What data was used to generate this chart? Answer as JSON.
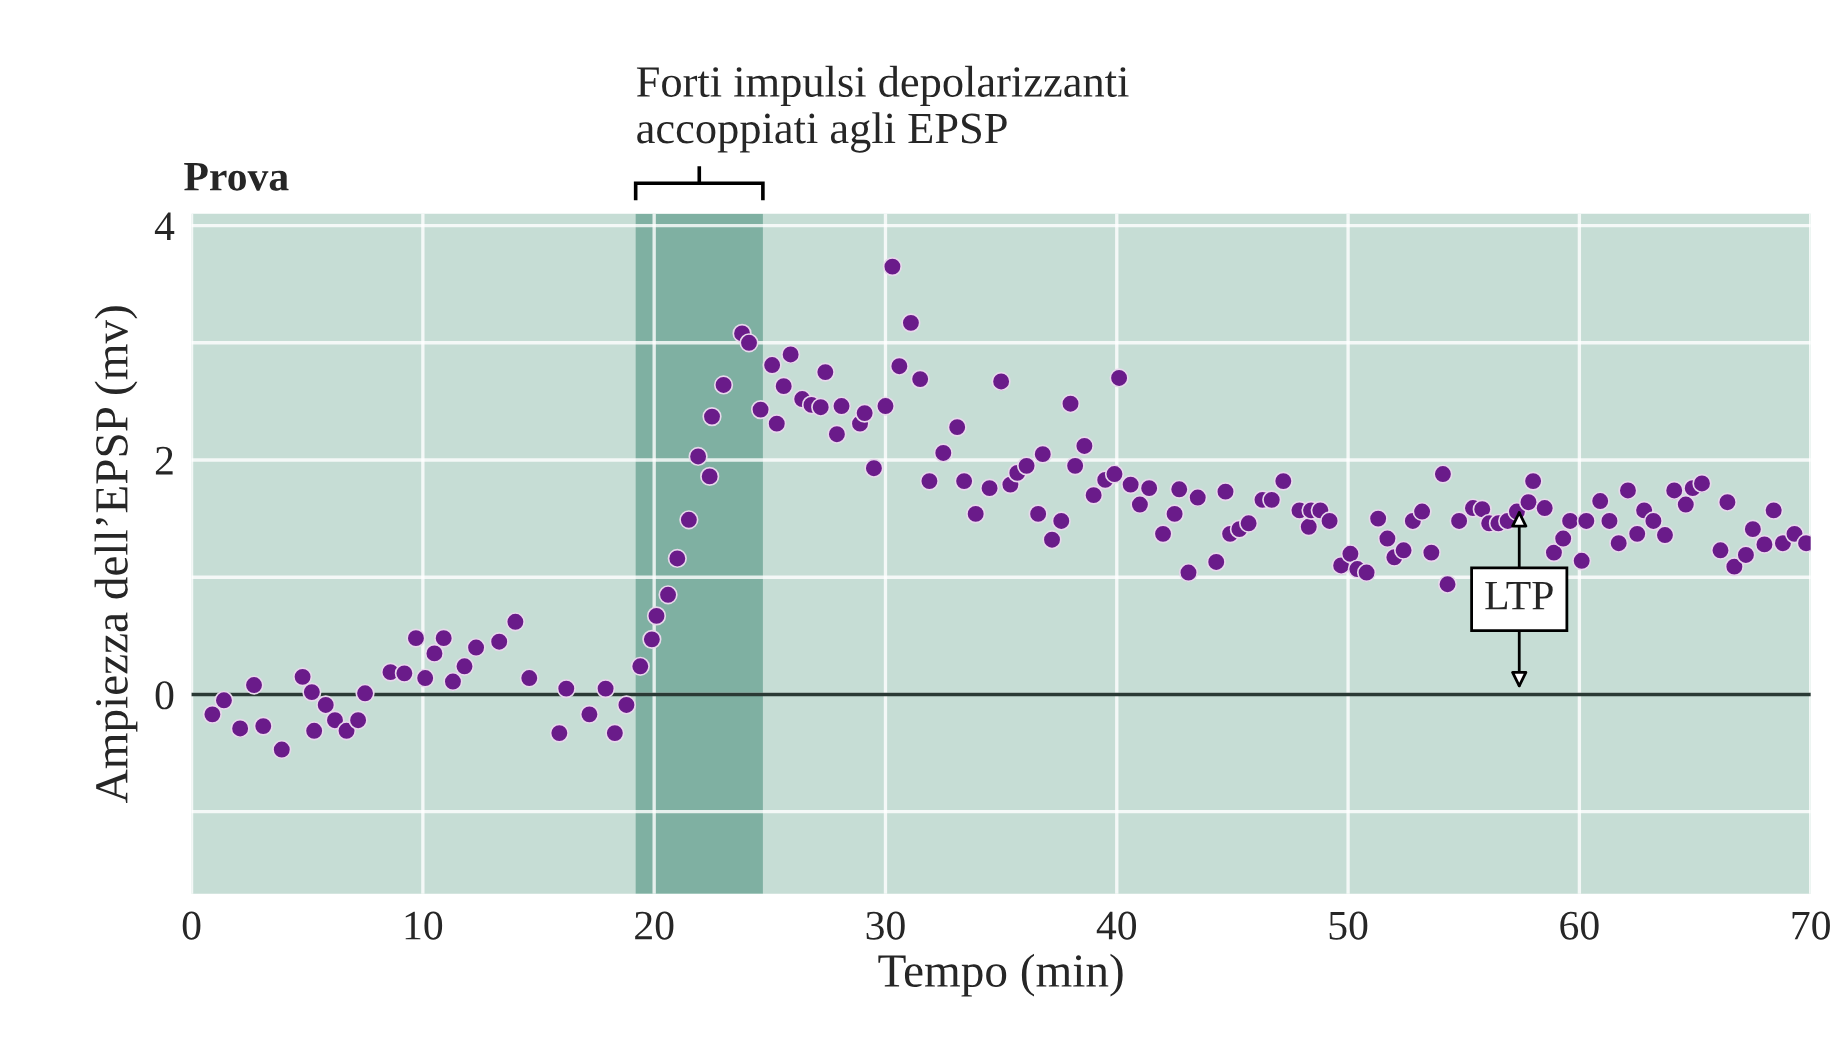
{
  "chart_data": {
    "type": "scatter",
    "title": "Prova",
    "xlabel": "Tempo (min)",
    "ylabel": "Ampiezza dell’EPSP (mv)",
    "xlim": [
      0,
      70
    ],
    "xticks": [
      0,
      10,
      20,
      30,
      40,
      50,
      60,
      70
    ],
    "ylim": [
      -1.7,
      4.1
    ],
    "yticks": [
      {
        "value": -1,
        "label": null
      },
      0,
      {
        "value": 1,
        "label": null
      },
      2,
      {
        "value": 3,
        "label": null
      },
      4
    ],
    "grid": true,
    "marker": "circle",
    "bands": [
      {
        "axis": "x",
        "from": 19.2,
        "to": 24.7,
        "label": "Forti impulsi depolarizzanti\naccoppiati agli EPSP",
        "color": "#7fb0a2"
      }
    ],
    "ref_lines": [
      {
        "axis": "y",
        "value": 0,
        "color": "#2a3a35"
      }
    ],
    "annotations": [
      "LTP"
    ],
    "series": [
      {
        "color": "#6a1b8a",
        "x": [
          0.9,
          1.4,
          2.1,
          2.7,
          3.1,
          3.9,
          4.8,
          5.2,
          5.3,
          5.8,
          6.2,
          6.7,
          7.2,
          7.5,
          8.6,
          9.2,
          9.7,
          10.1,
          10.5,
          10.9,
          11.3,
          11.8,
          12.3,
          13.3,
          14.0,
          14.6,
          15.9,
          16.2,
          17.2,
          17.9,
          18.3,
          18.8,
          19.4,
          19.9,
          20.1,
          20.6,
          21.0,
          21.5,
          21.9,
          22.4,
          22.5,
          23.0,
          23.8,
          24.1,
          24.6,
          25.1,
          25.3,
          25.6,
          25.9,
          26.4,
          26.8,
          27.2,
          27.4,
          27.9,
          28.1,
          28.9,
          29.1,
          29.5,
          30.0,
          30.3,
          30.6,
          31.1,
          31.5,
          31.9,
          32.5,
          33.1,
          33.4,
          33.9,
          34.5,
          35.0,
          35.4,
          35.7,
          36.1,
          36.6,
          36.8,
          37.2,
          37.6,
          38.0,
          38.2,
          38.6,
          39.0,
          39.5,
          39.9,
          40.1,
          40.6,
          41.0,
          41.4,
          42.0,
          42.5,
          42.7,
          43.1,
          43.5,
          44.3,
          44.7,
          44.9,
          45.3,
          45.7,
          46.3,
          46.7,
          47.2,
          47.9,
          48.3,
          48.4,
          48.8,
          49.2,
          49.7,
          50.1,
          50.4,
          50.8,
          51.3,
          51.7,
          52.0,
          52.4,
          52.8,
          53.2,
          53.6,
          54.1,
          54.3,
          54.8,
          55.4,
          55.8,
          56.1,
          56.5,
          56.9,
          57.3,
          57.8,
          58.0,
          58.5,
          58.9,
          59.3,
          59.6,
          60.1,
          60.3,
          60.9,
          61.3,
          61.7,
          62.1,
          62.5,
          62.8,
          63.2,
          63.7,
          64.1,
          64.6,
          64.9,
          65.3,
          66.1,
          66.4,
          66.7,
          67.2,
          67.5,
          68.0,
          68.4,
          68.8,
          69.3,
          69.8
        ],
        "values": [
          -0.17,
          -0.05,
          -0.29,
          0.08,
          -0.27,
          -0.47,
          0.15,
          0.02,
          -0.31,
          -0.09,
          -0.22,
          -0.31,
          -0.22,
          0.01,
          0.19,
          0.18,
          0.48,
          0.14,
          0.35,
          0.48,
          0.11,
          0.24,
          0.4,
          0.45,
          0.62,
          0.14,
          -0.33,
          0.05,
          -0.17,
          0.05,
          -0.33,
          -0.09,
          0.24,
          0.47,
          0.67,
          0.85,
          1.16,
          1.49,
          2.03,
          1.86,
          2.37,
          2.64,
          3.08,
          3.0,
          2.43,
          2.81,
          2.31,
          2.63,
          2.9,
          2.52,
          2.47,
          2.45,
          2.75,
          2.22,
          2.46,
          2.31,
          2.4,
          1.93,
          2.46,
          3.65,
          2.8,
          3.17,
          2.69,
          1.82,
          2.06,
          2.28,
          1.82,
          1.54,
          1.76,
          2.67,
          1.79,
          1.89,
          1.95,
          1.54,
          2.05,
          1.32,
          1.48,
          2.48,
          1.95,
          2.12,
          1.7,
          1.83,
          1.88,
          2.7,
          1.79,
          1.62,
          1.76,
          1.37,
          1.54,
          1.75,
          1.04,
          1.68,
          1.13,
          1.73,
          1.37,
          1.41,
          1.46,
          1.66,
          1.66,
          1.82,
          1.57,
          1.43,
          1.57,
          1.57,
          1.48,
          1.1,
          1.2,
          1.07,
          1.04,
          1.5,
          1.33,
          1.17,
          1.23,
          1.48,
          1.56,
          1.21,
          1.88,
          0.94,
          1.48,
          1.59,
          1.58,
          1.46,
          1.46,
          1.48,
          1.56,
          1.64,
          1.82,
          1.59,
          1.21,
          1.33,
          1.48,
          1.14,
          1.48,
          1.65,
          1.48,
          1.29,
          1.74,
          1.37,
          1.57,
          1.48,
          1.36,
          1.74,
          1.62,
          1.76,
          1.8,
          1.23,
          1.64,
          1.09,
          1.19,
          1.41,
          1.28,
          1.57,
          1.29,
          1.37,
          1.29
        ]
      }
    ]
  }
}
